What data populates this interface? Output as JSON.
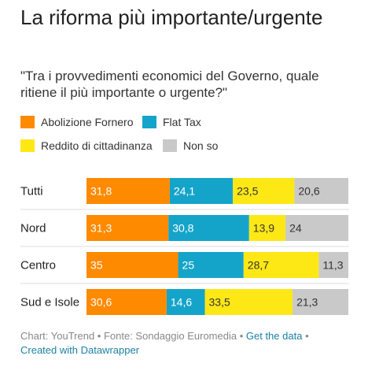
{
  "title": "La riforma più importante/urgente",
  "subtitle": "\"Tra i provvedimenti economici del Governo, quale ritiene il più importante o urgente?\"",
  "chart_data": {
    "type": "bar",
    "stacked": true,
    "orientation": "horizontal",
    "categories": [
      "Tutti",
      "Nord",
      "Centro",
      "Sud e Isole"
    ],
    "series": [
      {
        "name": "Abolizione Fornero",
        "color": "#fe8a00",
        "values": [
          31.8,
          31.3,
          35,
          30.6
        ],
        "labels": [
          "31,8",
          "31,3",
          "35",
          "30,6"
        ]
      },
      {
        "name": "Flat Tax",
        "color": "#15a4c9",
        "values": [
          24.1,
          30.8,
          25,
          14.6
        ],
        "labels": [
          "24,1",
          "30,8",
          "25",
          "14,6"
        ]
      },
      {
        "name": "Reddito di cittadinanza",
        "color": "#fde816",
        "values": [
          23.5,
          13.9,
          28.7,
          33.5
        ],
        "labels": [
          "23,5",
          "13,9",
          "28,7",
          "33,5"
        ]
      },
      {
        "name": "Non so",
        "color": "#c9c9c9",
        "values": [
          20.6,
          24,
          11.3,
          21.3
        ],
        "labels": [
          "20,6",
          "24",
          "11,3",
          "21,3"
        ]
      }
    ],
    "legend_position": "top"
  },
  "footer": {
    "source_text": "Chart: YouTrend • Fonte: Sondaggio Euromedia •",
    "get_data": "Get the data",
    "separator": "•",
    "created_with": "Created with Datawrapper"
  }
}
